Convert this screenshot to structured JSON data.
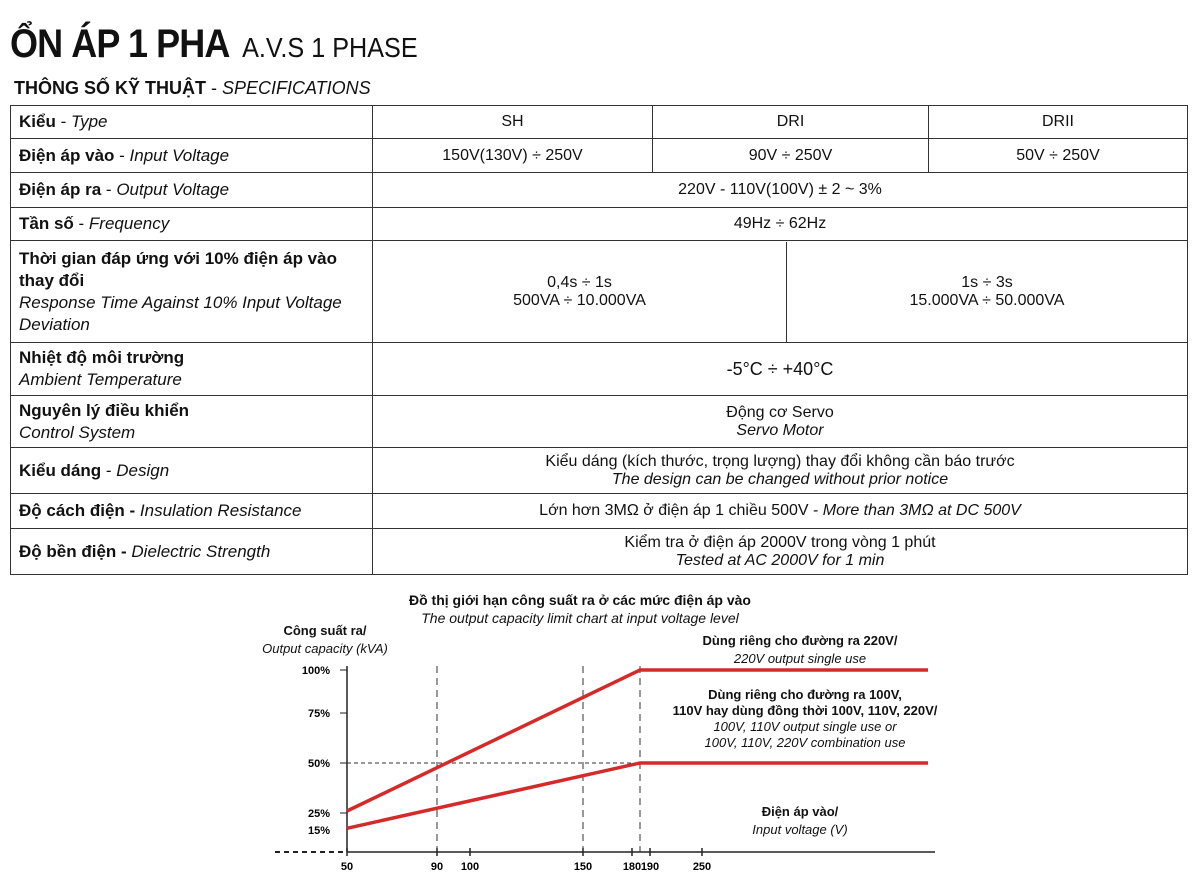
{
  "header": {
    "title": "ỔN ÁP 1 PHA",
    "title_en": "A.V.S 1 PHASE",
    "section_vi": "THÔNG SỐ KỸ THUẬT",
    "section_en": "SPECIFICATIONS"
  },
  "table": {
    "type": {
      "vi": "Kiểu",
      "en": "Type",
      "values": [
        "SH",
        "DRI",
        "DRII"
      ]
    },
    "input": {
      "vi": "Điện áp vào",
      "en": "Input Voltage",
      "values": [
        "150V(130V) ÷ 250V",
        "90V ÷ 250V",
        "50V ÷ 250V"
      ]
    },
    "output": {
      "vi": "Điện áp ra",
      "en": "Output Voltage",
      "value": "220V - 110V(100V) ± 2 ~ 3%"
    },
    "freq": {
      "vi": "Tần số",
      "en": "Frequency",
      "value": "49Hz ÷ 62Hz"
    },
    "response": {
      "vi": "Thời gian đáp ứng với 10% điện áp vào thay đổi",
      "en": "Response Time Against 10% Input Voltage Deviation",
      "a1": "0,4s ÷ 1s",
      "a2": "500VA ÷ 10.000VA",
      "b1": "1s ÷ 3s",
      "b2": "15.000VA ÷ 50.000VA"
    },
    "temp": {
      "vi": "Nhiệt độ môi trường",
      "en": "Ambient Temperature",
      "value": "-5°C ÷ +40°C"
    },
    "control": {
      "vi": "Nguyên lý điều khiển",
      "en": "Control System",
      "value_vi": "Động cơ Servo",
      "value_en": "Servo Motor"
    },
    "design": {
      "vi": "Kiểu dáng",
      "en": "Design",
      "value_vi": "Kiểu dáng (kích thước, trọng lượng) thay đổi không cần báo trước",
      "value_en": "The design can be changed without prior notice"
    },
    "insulation": {
      "vi": "Độ cách điện -",
      "en": "Insulation Resistance",
      "value_vi": "Lớn hơn 3MΩ ở điện áp 1 chiều 500V - ",
      "value_en": "More than 3MΩ at DC 500V"
    },
    "dielectric": {
      "vi": "Độ bền điện -",
      "en": "Dielectric Strength",
      "value_vi": "Kiểm tra ở điện áp 2000V trong vòng 1 phút",
      "value_en": "Tested at AC 2000V for 1 min"
    }
  },
  "chart_data": {
    "type": "line",
    "title": "Đồ thị giới hạn công suất ra ở các mức điện áp vào",
    "subtitle": "The output capacity limit chart at input voltage level",
    "ylabel_vi": "Công suất ra/",
    "ylabel_en": "Output capacity (kVA)",
    "xlabel_vi": "Điện áp vào/",
    "xlabel_en": "Input voltage (V)",
    "x_ticks": [
      "50",
      "90",
      "100",
      "150",
      "180",
      "190",
      "250"
    ],
    "y_ticks": [
      "100%",
      "75%",
      "50%",
      "25%",
      "15%"
    ],
    "series": [
      {
        "name_vi": "Dùng riêng cho đường ra 220V/",
        "name_en": "220V output single use",
        "points": [
          [
            50,
            26
          ],
          [
            185,
            100
          ]
        ],
        "continues_flat": true
      },
      {
        "name_vi1": "Dùng riêng cho đường ra 100V,",
        "name_vi2": "110V hay dùng đồng thời 100V, 110V, 220V/",
        "name_en1": "100V, 110V output single use or",
        "name_en2": "100V, 110V, 220V combination use",
        "points": [
          [
            50,
            16
          ],
          [
            185,
            50
          ]
        ],
        "continues_flat": true
      }
    ],
    "dashed_x": [
      90,
      150,
      185
    ],
    "dashed_y": [
      50
    ],
    "color": "#d42a2a"
  }
}
